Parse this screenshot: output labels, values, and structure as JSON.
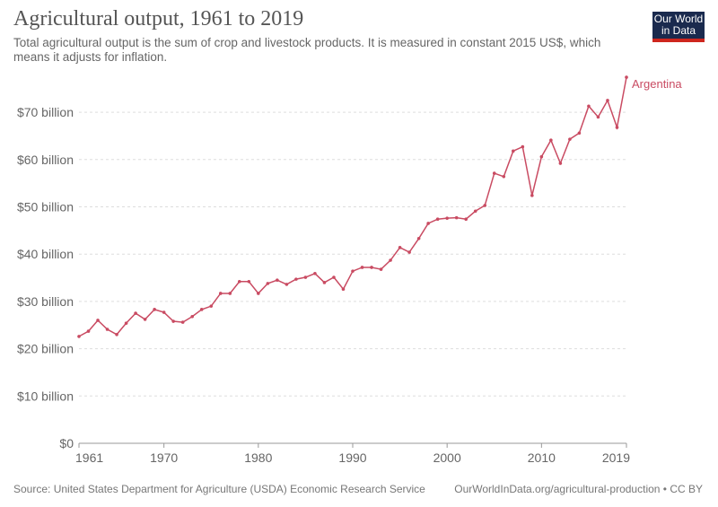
{
  "title": "Agricultural output, 1961 to 2019",
  "subtitle": "Total agricultural output is the sum of crop and livestock products. It is measured in constant 2015 US$, which means it adjusts for inflation.",
  "logo": "Our World in Data",
  "footer": {
    "source": "Source: United States Department for Agriculture (USDA) Economic Research Service",
    "credit": "OurWorldInData.org/agricultural-production • CC BY"
  },
  "colors": {
    "series": "#c94b62",
    "grid": "#dddddd"
  },
  "chart_data": {
    "type": "line",
    "title": "Agricultural output, 1961 to 2019",
    "xlabel": "",
    "ylabel": "",
    "xlim": [
      1961,
      2019
    ],
    "ylim": [
      0,
      77.4
    ],
    "xticks": [
      1961,
      1970,
      1980,
      1990,
      2000,
      2010,
      2019
    ],
    "yticks": [
      {
        "v": 0,
        "label": "$0"
      },
      {
        "v": 10,
        "label": "$10 billion"
      },
      {
        "v": 20,
        "label": "$20 billion"
      },
      {
        "v": 30,
        "label": "$30 billion"
      },
      {
        "v": 40,
        "label": "$40 billion"
      },
      {
        "v": 50,
        "label": "$50 billion"
      },
      {
        "v": 60,
        "label": "$60 billion"
      },
      {
        "v": 70,
        "label": "$70 billion"
      }
    ],
    "grid": true,
    "unit": "billion constant 2015 US$",
    "series": [
      {
        "name": "Argentina",
        "x_start": 1961,
        "values": [
          22.6,
          23.7,
          26.0,
          24.1,
          23.0,
          25.4,
          27.5,
          26.2,
          28.3,
          27.7,
          25.8,
          25.6,
          26.8,
          28.3,
          29.0,
          31.7,
          31.7,
          34.2,
          34.2,
          31.7,
          33.8,
          34.5,
          33.6,
          34.7,
          35.1,
          35.9,
          34.0,
          35.1,
          32.6,
          36.4,
          37.2,
          37.2,
          36.8,
          38.7,
          41.4,
          40.4,
          43.3,
          46.5,
          47.4,
          47.6,
          47.7,
          47.4,
          49.1,
          50.3,
          57.1,
          56.4,
          61.8,
          62.7,
          52.4,
          60.6,
          64.1,
          59.2,
          64.3,
          65.6,
          71.3,
          69.0,
          72.5,
          66.8,
          77.4
        ]
      }
    ]
  }
}
